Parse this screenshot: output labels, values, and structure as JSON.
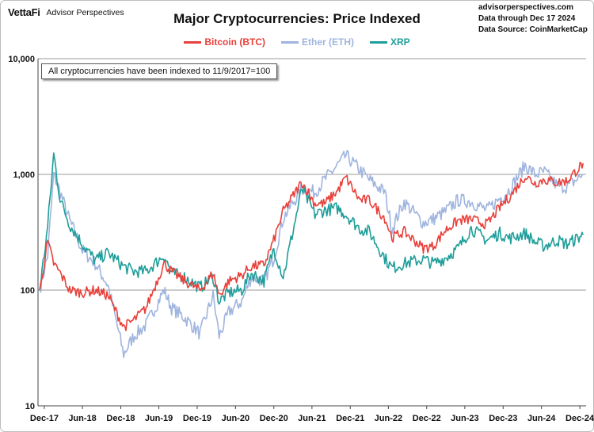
{
  "header": {
    "logo_brand": "VettaFi",
    "logo_subtitle": "Advisor Perspectives",
    "title": "Major Cryptocurrencies: Price Indexed",
    "source_lines": [
      "advisorperspectives.com",
      "Data through Dec 17 2024",
      "Data Source: CoinMarketCap"
    ]
  },
  "note": "All cryptocurrencies have been indexed to 11/9/2017=100",
  "colors": {
    "btc": "#e8403a",
    "eth": "#9fb4de",
    "xrp": "#1e9e99",
    "grid": "#9a9a9a",
    "axis": "#444444"
  },
  "chart_data": {
    "type": "line",
    "title": "Major Cryptocurrencies: Price Indexed",
    "y_scale": "log",
    "ylim": [
      10,
      10000
    ],
    "y_ticks": [
      "10",
      "100",
      "1,000",
      "10,000"
    ],
    "grid": "horizontal",
    "legend_position": "top-center",
    "x_tick_labels": [
      "Dec-17",
      "Jun-18",
      "Dec-18",
      "Jun-19",
      "Dec-19",
      "Jun-20",
      "Dec-20",
      "Jun-21",
      "Dec-21",
      "Jun-22",
      "Dec-22",
      "Jun-23",
      "Dec-23",
      "Jun-24",
      "Dec-24"
    ],
    "x": [
      "2017-11-09",
      "2017-12-17",
      "2018-01-15",
      "2018-02-15",
      "2018-04-01",
      "2018-06-01",
      "2018-08-01",
      "2018-10-01",
      "2018-12-15",
      "2019-02-01",
      "2019-04-01",
      "2019-06-26",
      "2019-08-01",
      "2019-10-01",
      "2019-12-15",
      "2020-02-15",
      "2020-03-15",
      "2020-05-01",
      "2020-07-01",
      "2020-08-15",
      "2020-10-15",
      "2020-12-01",
      "2021-01-15",
      "2021-04-14",
      "2021-06-15",
      "2021-08-01",
      "2021-10-01",
      "2021-11-10",
      "2022-01-15",
      "2022-03-01",
      "2022-05-15",
      "2022-06-18",
      "2022-08-15",
      "2022-11-15",
      "2023-01-01",
      "2023-03-01",
      "2023-05-01",
      "2023-07-01",
      "2023-09-15",
      "2023-11-15",
      "2024-01-01",
      "2024-03-15",
      "2024-05-01",
      "2024-06-15",
      "2024-08-15",
      "2024-10-01",
      "2024-12-17"
    ],
    "series": [
      {
        "name": "Bitcoin (BTC)",
        "values": [
          100,
          260,
          170,
          140,
          100,
          95,
          100,
          90,
          48,
          55,
          70,
          170,
          145,
          120,
          100,
          140,
          90,
          120,
          135,
          160,
          165,
          270,
          480,
          860,
          560,
          560,
          720,
          940,
          600,
          600,
          420,
          285,
          320,
          230,
          240,
          330,
          400,
          410,
          370,
          520,
          640,
          970,
          840,
          900,
          850,
          880,
          1250
        ]
      },
      {
        "name": "Ether (ETH)",
        "values": [
          100,
          200,
          1000,
          700,
          400,
          220,
          170,
          110,
          28,
          40,
          50,
          100,
          70,
          58,
          42,
          90,
          40,
          65,
          80,
          130,
          120,
          190,
          420,
          750,
          700,
          900,
          1200,
          1450,
          1100,
          900,
          700,
          340,
          580,
          380,
          410,
          480,
          600,
          580,
          490,
          620,
          740,
          1200,
          1000,
          1050,
          800,
          780,
          1000
        ]
      },
      {
        "name": "XRP",
        "values": [
          100,
          350,
          1500,
          600,
          370,
          250,
          180,
          210,
          160,
          145,
          145,
          200,
          140,
          130,
          105,
          130,
          80,
          95,
          100,
          140,
          120,
          230,
          130,
          750,
          450,
          490,
          510,
          450,
          340,
          320,
          190,
          155,
          170,
          185,
          170,
          190,
          230,
          340,
          270,
          310,
          280,
          310,
          260,
          240,
          270,
          250,
          300
        ]
      }
    ]
  }
}
